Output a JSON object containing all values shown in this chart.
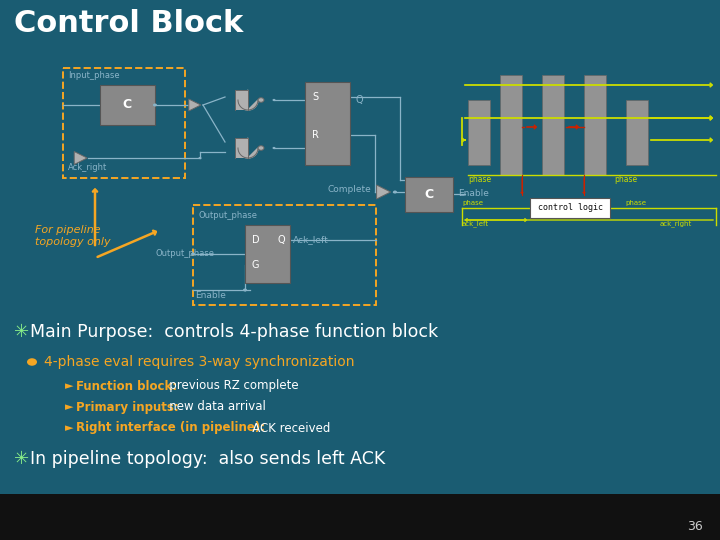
{
  "title": "Control Block",
  "title_bg_color": "#111111",
  "title_text_color": "#ffffff",
  "slide_bg_color": "#1a5c72",
  "bullet1": "Main Purpose:  controls 4-phase function block",
  "bullet1_color": "#ffffff",
  "bullet2": "4-phase eval requires 3-way synchronization",
  "bullet2_color": "#f5a623",
  "arrow1_label": "Function block:",
  "arrow1_text": "   previous RZ complete",
  "arrow2_label": "Primary inputs:",
  "arrow2_text": "   new data arrival",
  "arrow3_label": "Right interface (in pipeline):",
  "arrow3_text": "   ACK received",
  "arrow_label_color": "#f5a623",
  "arrow_text_color": "#ffffff",
  "bullet3": "In pipeline topology:  also sends left ACK",
  "bullet3_color": "#ffffff",
  "page_num": "36",
  "for_pipeline_color": "#f5a623",
  "for_pipeline_text": "For pipeline\ntopology only",
  "gate_color": "#b0b0b0",
  "line_color": "#8ab4c8",
  "orange_dash": "#f5a623",
  "yellow_arrow": "#ccdd00",
  "red_arrow": "#cc2200"
}
